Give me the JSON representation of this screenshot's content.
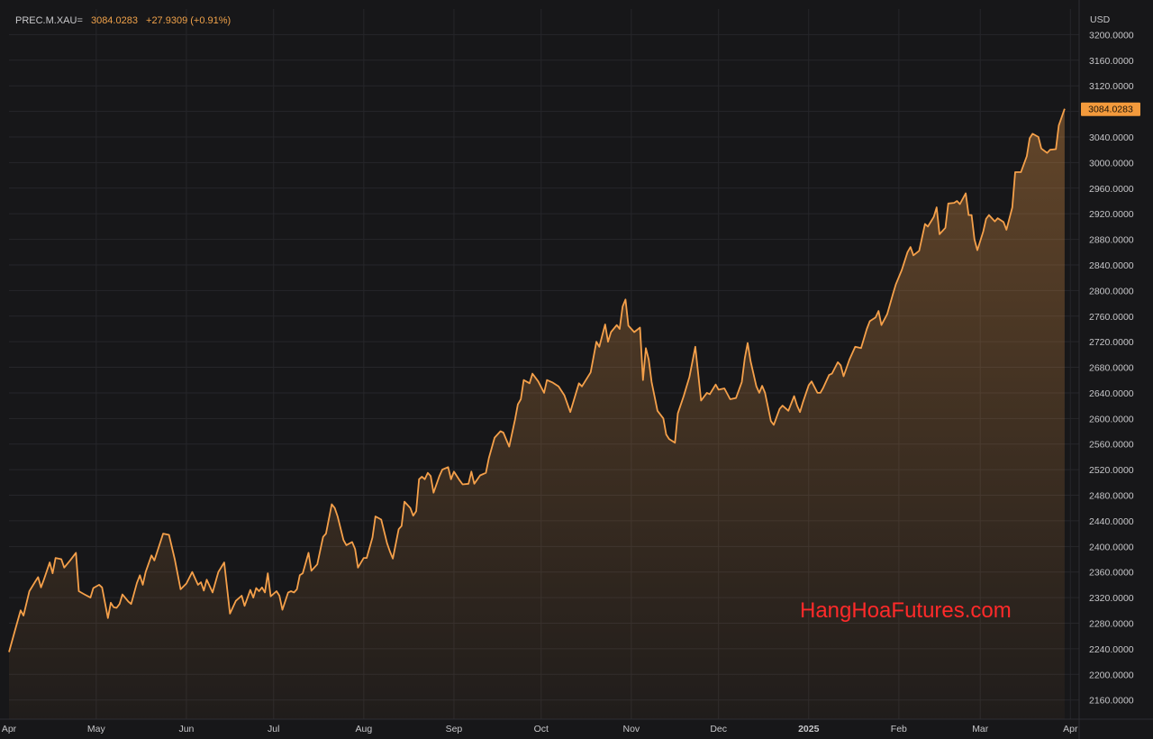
{
  "header": {
    "symbol": "PREC.M.XAU=",
    "last": "3084.0283",
    "change": "+27.9309 (+0.91%)"
  },
  "watermark": "HangHoaFutures.com",
  "colors": {
    "background": "#171719",
    "grid": "#26262a",
    "line": "#f5a04a",
    "label_bg": "#f39a3c",
    "axis_text": "#c7c7ca"
  },
  "chart_data": {
    "type": "area",
    "ylabel": "USD",
    "ylim": [
      2130,
      3240
    ],
    "xlim": [
      "2024-04-01",
      "2025-04-04"
    ],
    "grid": true,
    "last_value_label": "3084.0283",
    "y_ticks": [
      "2160.0000",
      "2200.0000",
      "2240.0000",
      "2280.0000",
      "2320.0000",
      "2360.0000",
      "2400.0000",
      "2440.0000",
      "2480.0000",
      "2520.0000",
      "2560.0000",
      "2600.0000",
      "2640.0000",
      "2680.0000",
      "2720.0000",
      "2760.0000",
      "2800.0000",
      "2840.0000",
      "2880.0000",
      "2920.0000",
      "2960.0000",
      "3000.0000",
      "3040.0000",
      "3080.0000",
      "3120.0000",
      "3160.0000",
      "3200.0000"
    ],
    "x_ticks": [
      {
        "date": "2024-04-01",
        "label": "Apr"
      },
      {
        "date": "2024-05-01",
        "label": "May"
      },
      {
        "date": "2024-06-01",
        "label": "Jun"
      },
      {
        "date": "2024-07-01",
        "label": "Jul"
      },
      {
        "date": "2024-08-01",
        "label": "Aug"
      },
      {
        "date": "2024-09-01",
        "label": "Sep"
      },
      {
        "date": "2024-10-01",
        "label": "Oct"
      },
      {
        "date": "2024-11-01",
        "label": "Nov"
      },
      {
        "date": "2024-12-01",
        "label": "Dec"
      },
      {
        "date": "2025-01-01",
        "label": "2025",
        "bold": true
      },
      {
        "date": "2025-02-01",
        "label": "Feb"
      },
      {
        "date": "2025-03-01",
        "label": "Mar"
      },
      {
        "date": "2025-04-01",
        "label": "Apr"
      }
    ],
    "series": [
      {
        "values": [
          [
            "2024-04-01",
            2235
          ],
          [
            "2024-04-03",
            2268
          ],
          [
            "2024-04-05",
            2300
          ],
          [
            "2024-04-06",
            2292
          ],
          [
            "2024-04-08",
            2330
          ],
          [
            "2024-04-10",
            2345
          ],
          [
            "2024-04-11",
            2352
          ],
          [
            "2024-04-12",
            2336
          ],
          [
            "2024-04-13",
            2348
          ],
          [
            "2024-04-15",
            2375
          ],
          [
            "2024-04-16",
            2358
          ],
          [
            "2024-04-17",
            2382
          ],
          [
            "2024-04-19",
            2380
          ],
          [
            "2024-04-20",
            2367
          ],
          [
            "2024-04-22",
            2378
          ],
          [
            "2024-04-24",
            2390
          ],
          [
            "2024-04-25",
            2330
          ],
          [
            "2024-04-27",
            2325
          ],
          [
            "2024-04-29",
            2320
          ],
          [
            "2024-04-30",
            2335
          ],
          [
            "2024-05-02",
            2340
          ],
          [
            "2024-05-03",
            2336
          ],
          [
            "2024-05-05",
            2288
          ],
          [
            "2024-05-06",
            2312
          ],
          [
            "2024-05-07",
            2305
          ],
          [
            "2024-05-08",
            2304
          ],
          [
            "2024-05-09",
            2310
          ],
          [
            "2024-05-10",
            2325
          ],
          [
            "2024-05-12",
            2314
          ],
          [
            "2024-05-13",
            2310
          ],
          [
            "2024-05-15",
            2343
          ],
          [
            "2024-05-16",
            2355
          ],
          [
            "2024-05-17",
            2340
          ],
          [
            "2024-05-18",
            2360
          ],
          [
            "2024-05-20",
            2386
          ],
          [
            "2024-05-21",
            2378
          ],
          [
            "2024-05-24",
            2420
          ],
          [
            "2024-05-26",
            2418
          ],
          [
            "2024-05-28",
            2380
          ],
          [
            "2024-05-30",
            2333
          ],
          [
            "2024-06-01",
            2342
          ],
          [
            "2024-06-03",
            2360
          ],
          [
            "2024-06-05",
            2340
          ],
          [
            "2024-06-06",
            2344
          ],
          [
            "2024-06-07",
            2331
          ],
          [
            "2024-06-08",
            2348
          ],
          [
            "2024-06-10",
            2328
          ],
          [
            "2024-06-12",
            2360
          ],
          [
            "2024-06-14",
            2375
          ],
          [
            "2024-06-16",
            2295
          ],
          [
            "2024-06-18",
            2315
          ],
          [
            "2024-06-20",
            2323
          ],
          [
            "2024-06-21",
            2307
          ],
          [
            "2024-06-23",
            2332
          ],
          [
            "2024-06-24",
            2320
          ],
          [
            "2024-06-25",
            2335
          ],
          [
            "2024-06-26",
            2330
          ],
          [
            "2024-06-27",
            2336
          ],
          [
            "2024-06-28",
            2328
          ],
          [
            "2024-06-29",
            2358
          ],
          [
            "2024-06-30",
            2322
          ],
          [
            "2024-07-02",
            2330
          ],
          [
            "2024-07-03",
            2323
          ],
          [
            "2024-07-04",
            2301
          ],
          [
            "2024-07-06",
            2328
          ],
          [
            "2024-07-07",
            2330
          ],
          [
            "2024-07-08",
            2328
          ],
          [
            "2024-07-09",
            2333
          ],
          [
            "2024-07-10",
            2355
          ],
          [
            "2024-07-11",
            2358
          ],
          [
            "2024-07-13",
            2390
          ],
          [
            "2024-07-14",
            2362
          ],
          [
            "2024-07-16",
            2372
          ],
          [
            "2024-07-18",
            2415
          ],
          [
            "2024-07-19",
            2420
          ],
          [
            "2024-07-21",
            2466
          ],
          [
            "2024-07-22",
            2460
          ],
          [
            "2024-07-23",
            2447
          ],
          [
            "2024-07-25",
            2410
          ],
          [
            "2024-07-26",
            2402
          ],
          [
            "2024-07-28",
            2407
          ],
          [
            "2024-07-29",
            2396
          ],
          [
            "2024-07-30",
            2367
          ],
          [
            "2024-08-01",
            2382
          ],
          [
            "2024-08-02",
            2382
          ],
          [
            "2024-08-04",
            2414
          ],
          [
            "2024-08-05",
            2447
          ],
          [
            "2024-08-07",
            2442
          ],
          [
            "2024-08-09",
            2405
          ],
          [
            "2024-08-10",
            2392
          ],
          [
            "2024-08-11",
            2381
          ],
          [
            "2024-08-13",
            2427
          ],
          [
            "2024-08-14",
            2432
          ],
          [
            "2024-08-15",
            2470
          ],
          [
            "2024-08-17",
            2460
          ],
          [
            "2024-08-18",
            2448
          ],
          [
            "2024-08-19",
            2455
          ],
          [
            "2024-08-20",
            2505
          ],
          [
            "2024-08-21",
            2509
          ],
          [
            "2024-08-22",
            2505
          ],
          [
            "2024-08-23",
            2515
          ],
          [
            "2024-08-24",
            2510
          ],
          [
            "2024-08-25",
            2484
          ],
          [
            "2024-08-27",
            2510
          ],
          [
            "2024-08-28",
            2520
          ],
          [
            "2024-08-30",
            2524
          ],
          [
            "2024-08-31",
            2505
          ],
          [
            "2024-09-01",
            2517
          ],
          [
            "2024-09-03",
            2503
          ],
          [
            "2024-09-04",
            2497
          ],
          [
            "2024-09-06",
            2498
          ],
          [
            "2024-09-07",
            2517
          ],
          [
            "2024-09-08",
            2498
          ],
          [
            "2024-09-10",
            2511
          ],
          [
            "2024-09-12",
            2515
          ],
          [
            "2024-09-13",
            2538
          ],
          [
            "2024-09-15",
            2570
          ],
          [
            "2024-09-17",
            2580
          ],
          [
            "2024-09-18",
            2578
          ],
          [
            "2024-09-20",
            2556
          ],
          [
            "2024-09-22",
            2598
          ],
          [
            "2024-09-23",
            2622
          ],
          [
            "2024-09-24",
            2630
          ],
          [
            "2024-09-25",
            2660
          ],
          [
            "2024-09-27",
            2655
          ],
          [
            "2024-09-28",
            2670
          ],
          [
            "2024-09-30",
            2658
          ],
          [
            "2024-10-02",
            2640
          ],
          [
            "2024-10-03",
            2660
          ],
          [
            "2024-10-05",
            2656
          ],
          [
            "2024-10-07",
            2650
          ],
          [
            "2024-10-09",
            2636
          ],
          [
            "2024-10-11",
            2610
          ],
          [
            "2024-10-14",
            2655
          ],
          [
            "2024-10-15",
            2650
          ],
          [
            "2024-10-18",
            2672
          ],
          [
            "2024-10-20",
            2720
          ],
          [
            "2024-10-21",
            2712
          ],
          [
            "2024-10-22",
            2730
          ],
          [
            "2024-10-23",
            2747
          ],
          [
            "2024-10-24",
            2720
          ],
          [
            "2024-10-25",
            2735
          ],
          [
            "2024-10-27",
            2746
          ],
          [
            "2024-10-28",
            2740
          ],
          [
            "2024-10-29",
            2775
          ],
          [
            "2024-10-30",
            2786
          ],
          [
            "2024-10-31",
            2745
          ],
          [
            "2024-11-02",
            2735
          ],
          [
            "2024-11-04",
            2742
          ],
          [
            "2024-11-05",
            2660
          ],
          [
            "2024-11-06",
            2710
          ],
          [
            "2024-11-07",
            2692
          ],
          [
            "2024-11-08",
            2657
          ],
          [
            "2024-11-10",
            2612
          ],
          [
            "2024-11-12",
            2600
          ],
          [
            "2024-11-13",
            2575
          ],
          [
            "2024-11-14",
            2568
          ],
          [
            "2024-11-16",
            2562
          ],
          [
            "2024-11-17",
            2608
          ],
          [
            "2024-11-19",
            2635
          ],
          [
            "2024-11-21",
            2665
          ],
          [
            "2024-11-23",
            2712
          ],
          [
            "2024-11-24",
            2670
          ],
          [
            "2024-11-25",
            2628
          ],
          [
            "2024-11-27",
            2640
          ],
          [
            "2024-11-28",
            2638
          ],
          [
            "2024-11-30",
            2653
          ],
          [
            "2024-12-01",
            2645
          ],
          [
            "2024-12-03",
            2647
          ],
          [
            "2024-12-05",
            2630
          ],
          [
            "2024-12-07",
            2632
          ],
          [
            "2024-12-09",
            2657
          ],
          [
            "2024-12-10",
            2694
          ],
          [
            "2024-12-11",
            2718
          ],
          [
            "2024-12-12",
            2690
          ],
          [
            "2024-12-14",
            2650
          ],
          [
            "2024-12-15",
            2640
          ],
          [
            "2024-12-16",
            2651
          ],
          [
            "2024-12-17",
            2640
          ],
          [
            "2024-12-19",
            2596
          ],
          [
            "2024-12-20",
            2590
          ],
          [
            "2024-12-22",
            2615
          ],
          [
            "2024-12-23",
            2620
          ],
          [
            "2024-12-25",
            2612
          ],
          [
            "2024-12-27",
            2635
          ],
          [
            "2024-12-28",
            2620
          ],
          [
            "2024-12-29",
            2610
          ],
          [
            "2024-12-30",
            2625
          ],
          [
            "2025-01-01",
            2652
          ],
          [
            "2025-01-02",
            2658
          ],
          [
            "2025-01-04",
            2640
          ],
          [
            "2025-01-05",
            2640
          ],
          [
            "2025-01-06",
            2648
          ],
          [
            "2025-01-08",
            2668
          ],
          [
            "2025-01-09",
            2670
          ],
          [
            "2025-01-11",
            2688
          ],
          [
            "2025-01-12",
            2683
          ],
          [
            "2025-01-13",
            2666
          ],
          [
            "2025-01-15",
            2692
          ],
          [
            "2025-01-17",
            2712
          ],
          [
            "2025-01-19",
            2710
          ],
          [
            "2025-01-21",
            2740
          ],
          [
            "2025-01-22",
            2752
          ],
          [
            "2025-01-24",
            2758
          ],
          [
            "2025-01-25",
            2768
          ],
          [
            "2025-01-26",
            2746
          ],
          [
            "2025-01-28",
            2763
          ],
          [
            "2025-01-30",
            2795
          ],
          [
            "2025-01-31",
            2810
          ],
          [
            "2025-02-02",
            2832
          ],
          [
            "2025-02-04",
            2860
          ],
          [
            "2025-02-05",
            2868
          ],
          [
            "2025-02-06",
            2855
          ],
          [
            "2025-02-08",
            2862
          ],
          [
            "2025-02-10",
            2904
          ],
          [
            "2025-02-11",
            2900
          ],
          [
            "2025-02-13",
            2915
          ],
          [
            "2025-02-14",
            2930
          ],
          [
            "2025-02-15",
            2888
          ],
          [
            "2025-02-17",
            2898
          ],
          [
            "2025-02-18",
            2936
          ],
          [
            "2025-02-20",
            2937
          ],
          [
            "2025-02-21",
            2940
          ],
          [
            "2025-02-22",
            2935
          ],
          [
            "2025-02-24",
            2952
          ],
          [
            "2025-02-25",
            2918
          ],
          [
            "2025-02-26",
            2918
          ],
          [
            "2025-02-27",
            2880
          ],
          [
            "2025-02-28",
            2863
          ],
          [
            "2025-03-02",
            2892
          ],
          [
            "2025-03-03",
            2912
          ],
          [
            "2025-03-04",
            2918
          ],
          [
            "2025-03-06",
            2908
          ],
          [
            "2025-03-07",
            2913
          ],
          [
            "2025-03-09",
            2907
          ],
          [
            "2025-03-10",
            2895
          ],
          [
            "2025-03-12",
            2930
          ],
          [
            "2025-03-13",
            2985
          ],
          [
            "2025-03-15",
            2985
          ],
          [
            "2025-03-17",
            3010
          ],
          [
            "2025-03-18",
            3038
          ],
          [
            "2025-03-19",
            3045
          ],
          [
            "2025-03-21",
            3040
          ],
          [
            "2025-03-22",
            3022
          ],
          [
            "2025-03-24",
            3015
          ],
          [
            "2025-03-25",
            3020
          ],
          [
            "2025-03-27",
            3021
          ],
          [
            "2025-03-28",
            3058
          ],
          [
            "2025-03-30",
            3084
          ]
        ]
      }
    ]
  }
}
